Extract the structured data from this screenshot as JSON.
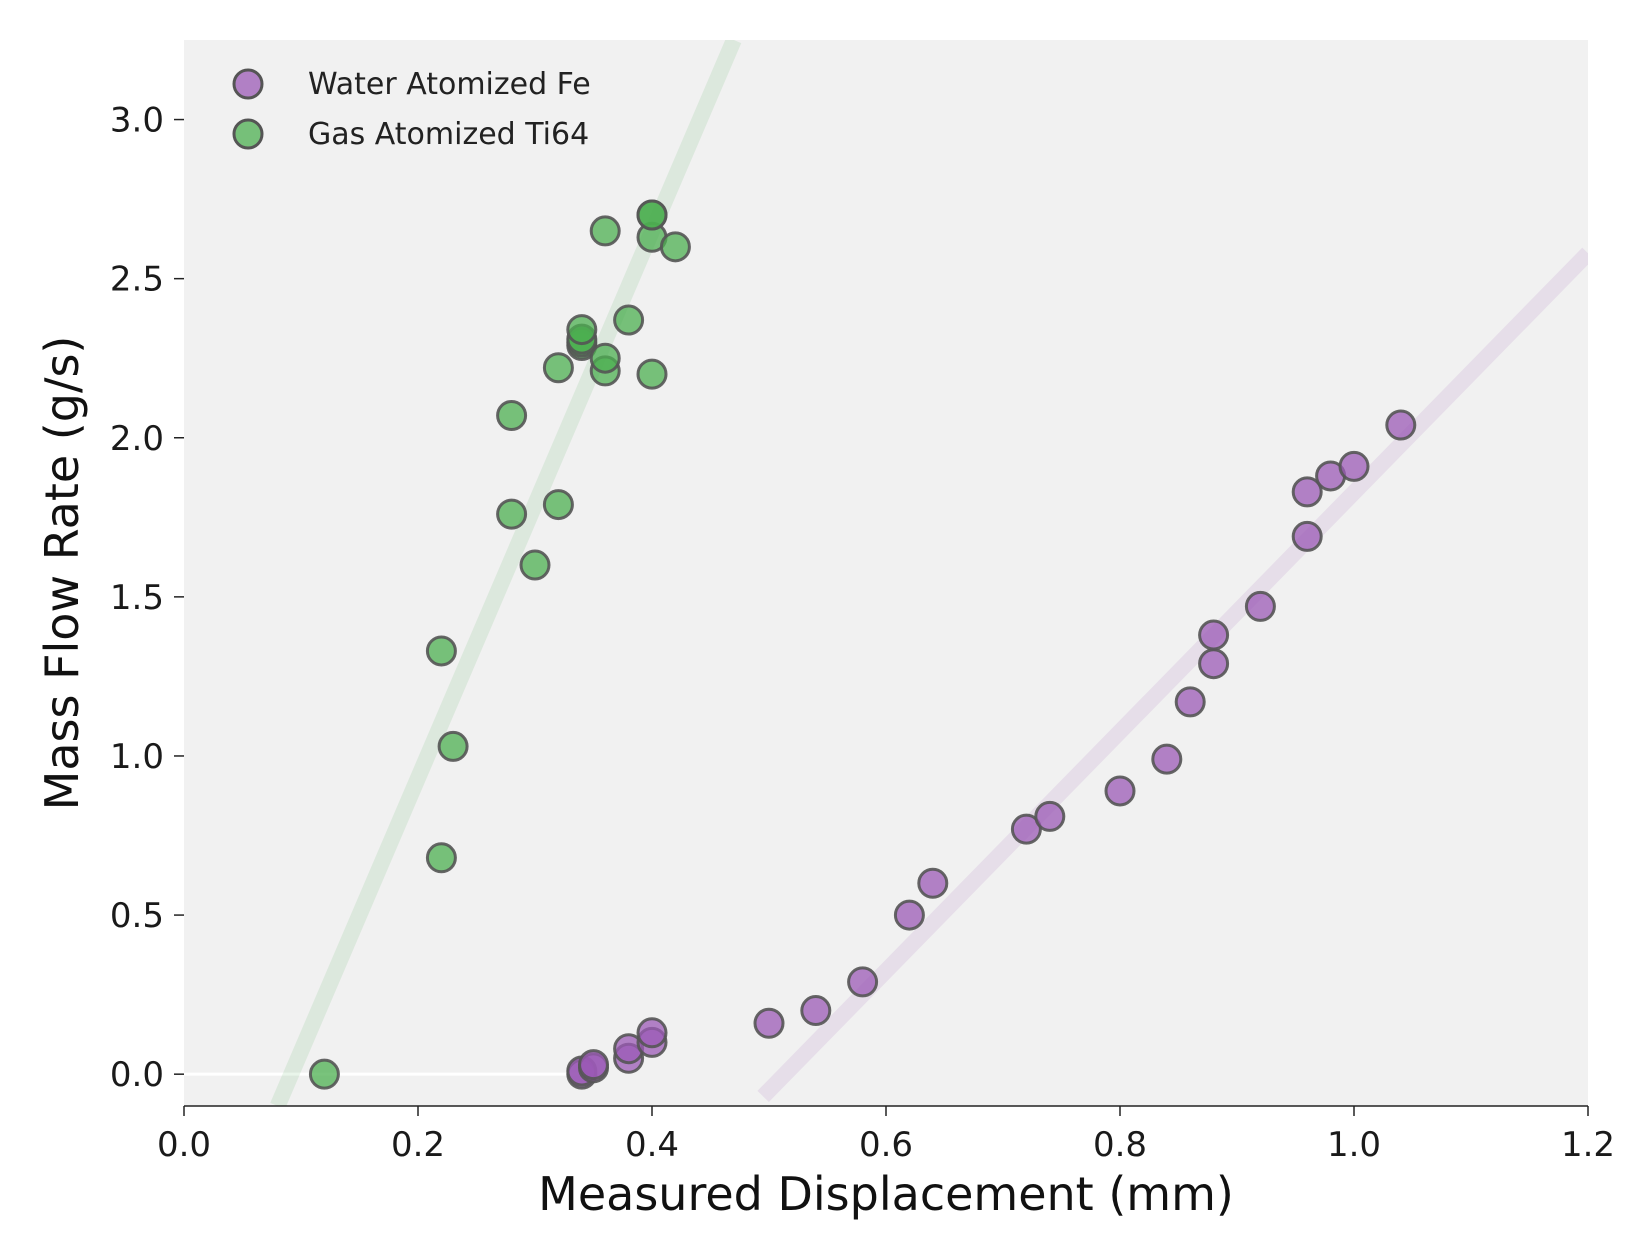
{
  "chart_data": {
    "type": "scatter",
    "title": "",
    "xlabel": "Measured Displacement (mm)",
    "ylabel": "Mass Flow Rate (g/s)",
    "xlim": [
      0.0,
      1.2
    ],
    "ylim": [
      -0.1,
      3.25
    ],
    "xticks": [
      0.0,
      0.2,
      0.4,
      0.6,
      0.8,
      1.0,
      1.2
    ],
    "xtick_labels": [
      "0.0",
      "0.2",
      "0.4",
      "0.6",
      "0.8",
      "1.0",
      "1.2"
    ],
    "yticks": [
      0.0,
      0.5,
      1.0,
      1.5,
      2.0,
      2.5,
      3.0
    ],
    "ytick_labels": [
      "0.0",
      "0.5",
      "1.0",
      "1.5",
      "2.0",
      "2.5",
      "3.0"
    ],
    "grid": false,
    "legend_position": "top-left",
    "series": [
      {
        "name": "Water Atomized Fe",
        "color": "#9b59b6",
        "x": [
          0.34,
          0.34,
          0.35,
          0.35,
          0.38,
          0.38,
          0.4,
          0.4,
          0.5,
          0.54,
          0.58,
          0.62,
          0.64,
          0.72,
          0.74,
          0.8,
          0.84,
          0.86,
          0.88,
          0.88,
          0.92,
          0.96,
          0.96,
          0.98,
          1.0,
          1.04
        ],
        "y": [
          0.0,
          0.01,
          0.02,
          0.03,
          0.05,
          0.08,
          0.1,
          0.13,
          0.16,
          0.2,
          0.29,
          0.5,
          0.6,
          0.77,
          0.81,
          0.89,
          0.99,
          1.17,
          1.29,
          1.38,
          1.47,
          1.69,
          1.83,
          1.88,
          1.91,
          2.04
        ],
        "trend_line": {
          "x": [
            0.495,
            1.2
          ],
          "y": [
            -0.07,
            2.58
          ]
        }
      },
      {
        "name": "Gas Atomized Ti64",
        "color": "#4caf50",
        "x": [
          0.12,
          0.22,
          0.22,
          0.23,
          0.28,
          0.28,
          0.3,
          0.32,
          0.32,
          0.34,
          0.34,
          0.34,
          0.34,
          0.36,
          0.36,
          0.36,
          0.38,
          0.4,
          0.4,
          0.4,
          0.4,
          0.42
        ],
        "y": [
          0.0,
          0.68,
          1.33,
          1.03,
          1.76,
          2.07,
          1.6,
          1.79,
          2.22,
          2.29,
          2.3,
          2.31,
          2.34,
          2.21,
          2.25,
          2.65,
          2.37,
          2.2,
          2.63,
          2.7,
          2.7,
          2.6
        ],
        "trend_line": {
          "x": [
            0.08,
            0.47
          ],
          "y": [
            -0.1,
            3.25
          ]
        }
      }
    ],
    "reference_line": {
      "x": [
        0.0,
        0.34
      ],
      "y": [
        0.0,
        0.0
      ],
      "color": "#ffffff"
    }
  }
}
